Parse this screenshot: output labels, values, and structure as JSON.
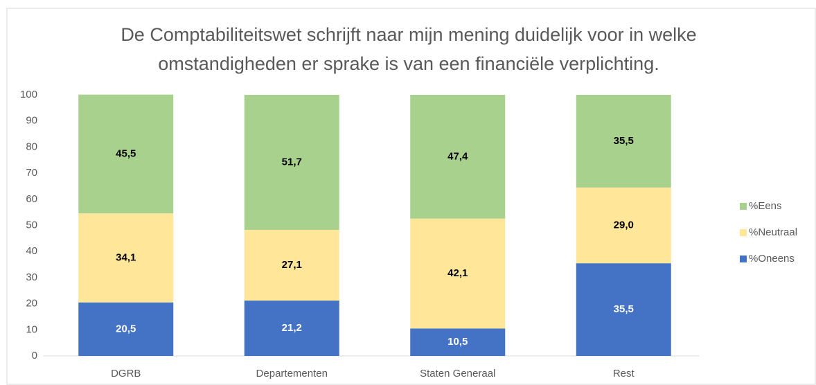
{
  "chart_data": {
    "type": "stacked_bar",
    "title": [
      "De Comptabiliteitswet schrijft naar mijn mening duidelijk voor in welke",
      "omstandigheden er sprake is van een financiële verplichting."
    ],
    "categories": [
      "DGRB",
      "Departementen",
      "Staten Generaal",
      "Rest"
    ],
    "series": [
      {
        "name": "%Oneens",
        "color": "#4472c4",
        "label_color": "#ffffff",
        "values": [
          20.5,
          21.2,
          10.5,
          35.5
        ],
        "value_labels": [
          "20,5",
          "21,2",
          "10,5",
          "35,5"
        ]
      },
      {
        "name": "%Neutraal",
        "color": "#ffe699",
        "label_color": "#000000",
        "values": [
          34.1,
          27.1,
          42.1,
          29.0
        ],
        "value_labels": [
          "34,1",
          "27,1",
          "42,1",
          "29,0"
        ]
      },
      {
        "name": "%Eens",
        "color": "#a9d18e",
        "label_color": "#000000",
        "values": [
          45.5,
          51.7,
          47.4,
          35.5
        ],
        "value_labels": [
          "45,5",
          "51,7",
          "47,4",
          "35,5"
        ]
      }
    ],
    "ylim": [
      0,
      100
    ],
    "yticks": [
      0,
      10,
      20,
      30,
      40,
      50,
      60,
      70,
      80,
      90,
      100
    ],
    "grid": false,
    "legend": "right"
  }
}
